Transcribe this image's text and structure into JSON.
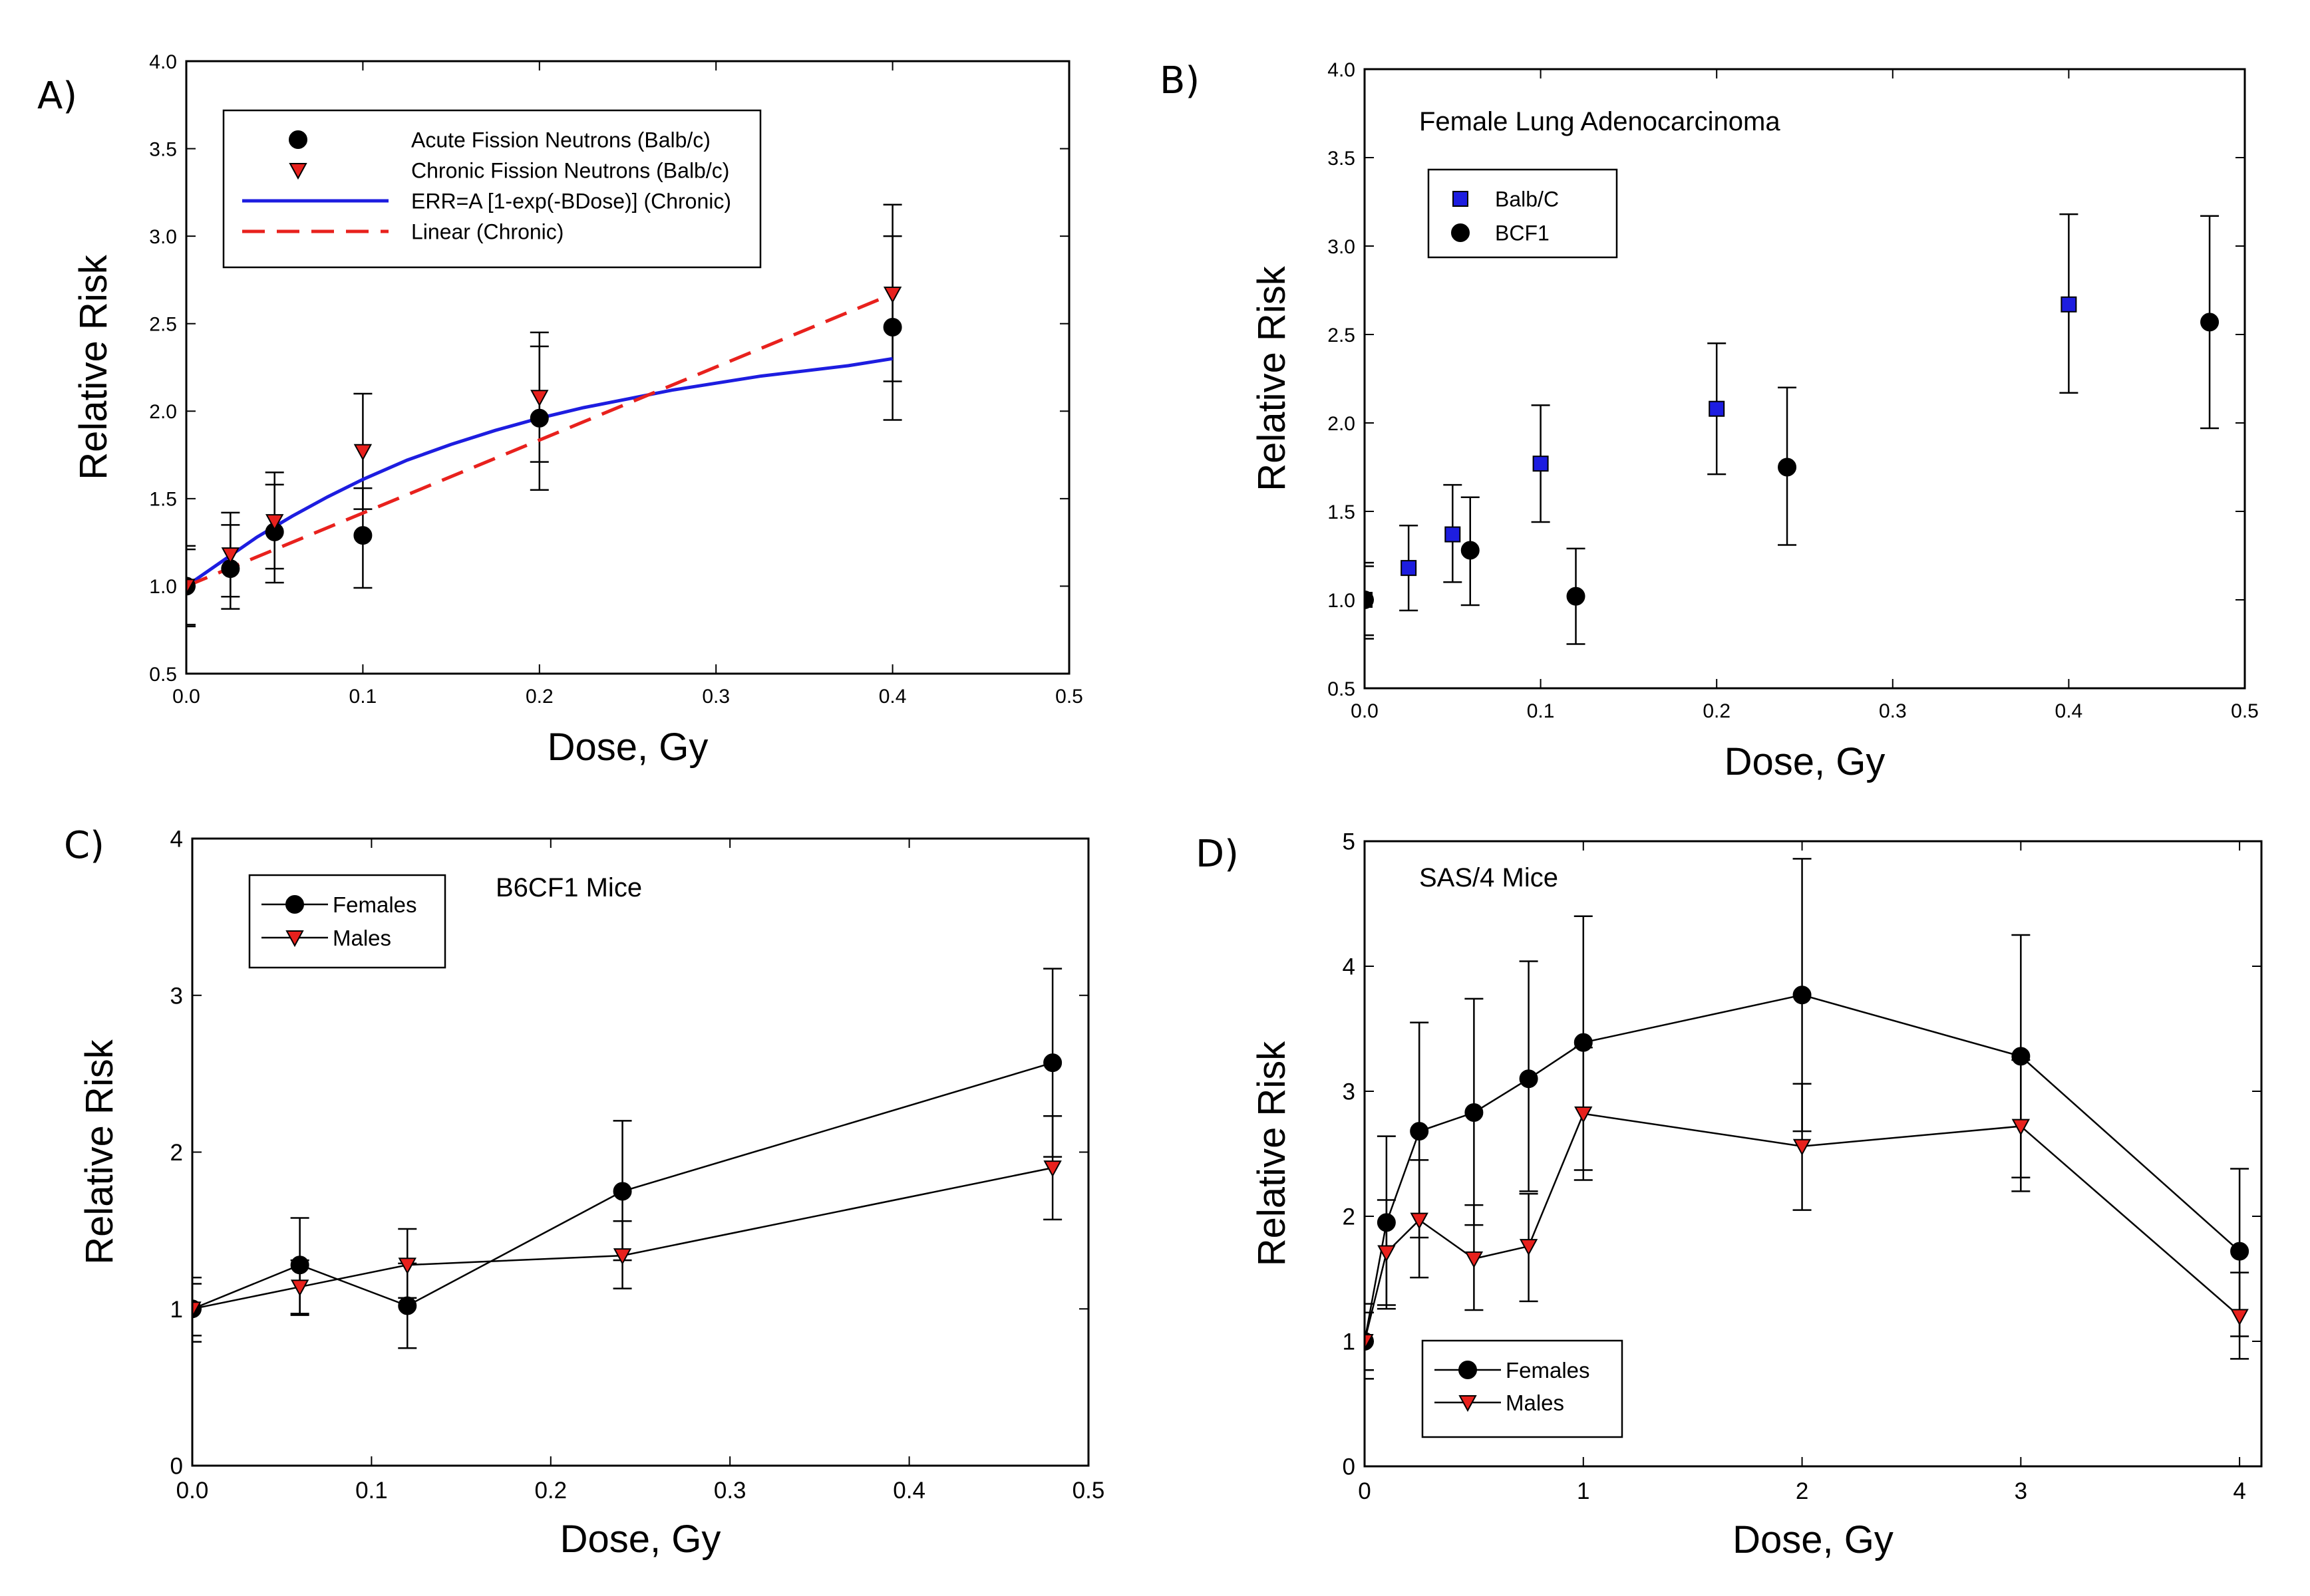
{
  "chart_data": [
    {
      "type": "scatter",
      "panel_label": "A)",
      "xlabel": "Dose, Gy",
      "ylabel": "Relative Risk",
      "xlim": [
        0,
        0.5
      ],
      "ylim": [
        0.5,
        4.0
      ],
      "x_ticks": [
        "0.0",
        "0.1",
        "0.2",
        "0.3",
        "0.4",
        "0.5"
      ],
      "y_ticks": [
        "0.5",
        "1.0",
        "1.5",
        "2.0",
        "2.5",
        "3.0",
        "3.5",
        "4.0"
      ],
      "legend": "top-left",
      "series": [
        {
          "name": "Acute Fission Neutrons (Balb/c)",
          "marker": "circle",
          "color": "#000000",
          "points": [
            {
              "x": 0.0,
              "y": 1.0,
              "lo": 0.77,
              "hi": 1.23
            },
            {
              "x": 0.025,
              "y": 1.1,
              "lo": 0.87,
              "hi": 1.35
            },
            {
              "x": 0.05,
              "y": 1.31,
              "lo": 1.02,
              "hi": 1.58
            },
            {
              "x": 0.1,
              "y": 1.29,
              "lo": 0.99,
              "hi": 1.56
            },
            {
              "x": 0.2,
              "y": 1.96,
              "lo": 1.55,
              "hi": 2.37
            },
            {
              "x": 0.4,
              "y": 2.48,
              "lo": 1.95,
              "hi": 3.0
            }
          ]
        },
        {
          "name": "Chronic Fission Neutrons (Balb/c)",
          "marker": "triangle-down",
          "color": "#e8211d",
          "points": [
            {
              "x": 0.0,
              "y": 1.0,
              "lo": 0.78,
              "hi": 1.21
            },
            {
              "x": 0.025,
              "y": 1.18,
              "lo": 0.94,
              "hi": 1.42
            },
            {
              "x": 0.05,
              "y": 1.37,
              "lo": 1.1,
              "hi": 1.65
            },
            {
              "x": 0.1,
              "y": 1.77,
              "lo": 1.44,
              "hi": 2.1
            },
            {
              "x": 0.2,
              "y": 2.08,
              "lo": 1.71,
              "hi": 2.45
            },
            {
              "x": 0.4,
              "y": 2.67,
              "lo": 2.17,
              "hi": 3.18
            }
          ]
        },
        {
          "name": "ERR=A [1-exp(-BDose)] (Chronic)",
          "style": "solid-line",
          "color": "#1d1de0",
          "x": [
            0.0,
            0.02,
            0.04,
            0.06,
            0.08,
            0.1,
            0.125,
            0.15,
            0.175,
            0.2,
            0.225,
            0.25,
            0.275,
            0.3,
            0.325,
            0.35,
            0.375,
            0.4
          ],
          "y": [
            1.0,
            1.14,
            1.28,
            1.4,
            1.51,
            1.61,
            1.72,
            1.81,
            1.89,
            1.96,
            2.02,
            2.07,
            2.12,
            2.16,
            2.2,
            2.23,
            2.26,
            2.3
          ]
        },
        {
          "name": "Linear (Chronic)",
          "style": "dashed-line",
          "color": "#e8211d",
          "x": [
            0.0,
            0.4
          ],
          "y": [
            1.0,
            2.67
          ]
        }
      ]
    },
    {
      "type": "scatter",
      "panel_label": "B)",
      "title": "Female Lung Adenocarcinoma",
      "xlabel": "Dose, Gy",
      "ylabel": "Relative Risk",
      "xlim": [
        0,
        0.5
      ],
      "ylim": [
        0.5,
        4.0
      ],
      "x_ticks": [
        "0.0",
        "0.1",
        "0.2",
        "0.3",
        "0.4",
        "0.5"
      ],
      "y_ticks": [
        "0.5",
        "1.0",
        "1.5",
        "2.0",
        "2.5",
        "3.0",
        "3.5",
        "4.0"
      ],
      "legend": "upper-left",
      "series": [
        {
          "name": "Balb/C",
          "marker": "square",
          "color": "#1d1de0",
          "points": [
            {
              "x": 0.0,
              "y": 1.0,
              "lo": 0.8,
              "hi": 1.21
            },
            {
              "x": 0.025,
              "y": 1.18,
              "lo": 0.94,
              "hi": 1.42
            },
            {
              "x": 0.05,
              "y": 1.37,
              "lo": 1.1,
              "hi": 1.65
            },
            {
              "x": 0.1,
              "y": 1.77,
              "lo": 1.44,
              "hi": 2.1
            },
            {
              "x": 0.2,
              "y": 2.08,
              "lo": 1.71,
              "hi": 2.45
            },
            {
              "x": 0.4,
              "y": 2.67,
              "lo": 2.17,
              "hi": 3.18
            }
          ]
        },
        {
          "name": "BCF1",
          "marker": "circle",
          "color": "#000000",
          "points": [
            {
              "x": 0.0,
              "y": 1.0,
              "lo": 0.78,
              "hi": 1.19
            },
            {
              "x": 0.06,
              "y": 1.28,
              "lo": 0.97,
              "hi": 1.58
            },
            {
              "x": 0.12,
              "y": 1.02,
              "lo": 0.75,
              "hi": 1.29
            },
            {
              "x": 0.24,
              "y": 1.75,
              "lo": 1.31,
              "hi": 2.2
            },
            {
              "x": 0.48,
              "y": 2.57,
              "lo": 1.97,
              "hi": 3.17
            }
          ]
        }
      ]
    },
    {
      "type": "line",
      "panel_label": "C)",
      "title": "B6CF1 Mice",
      "xlabel": "Dose, Gy",
      "ylabel": "Relative Risk",
      "xlim": [
        0,
        0.5
      ],
      "ylim": [
        0,
        4
      ],
      "x_ticks": [
        "0.0",
        "0.1",
        "0.2",
        "0.3",
        "0.4",
        "0.5"
      ],
      "y_ticks": [
        "0",
        "1",
        "2",
        "3",
        "4"
      ],
      "legend": "top-left",
      "series": [
        {
          "name": "Females",
          "marker": "circle",
          "color": "#000000",
          "points": [
            {
              "x": 0.0,
              "y": 1.0,
              "lo": 0.79,
              "hi": 1.2
            },
            {
              "x": 0.06,
              "y": 1.28,
              "lo": 0.97,
              "hi": 1.58
            },
            {
              "x": 0.12,
              "y": 1.02,
              "lo": 0.75,
              "hi": 1.29
            },
            {
              "x": 0.24,
              "y": 1.75,
              "lo": 1.31,
              "hi": 2.2
            },
            {
              "x": 0.48,
              "y": 2.57,
              "lo": 1.97,
              "hi": 3.17
            }
          ]
        },
        {
          "name": "Males",
          "marker": "triangle-down",
          "color": "#e8211d",
          "points": [
            {
              "x": 0.0,
              "y": 1.0,
              "lo": 0.83,
              "hi": 1.16
            },
            {
              "x": 0.06,
              "y": 1.14,
              "lo": 0.96,
              "hi": 1.31
            },
            {
              "x": 0.12,
              "y": 1.28,
              "lo": 1.07,
              "hi": 1.51
            },
            {
              "x": 0.24,
              "y": 1.34,
              "lo": 1.13,
              "hi": 1.56
            },
            {
              "x": 0.48,
              "y": 1.9,
              "lo": 1.57,
              "hi": 2.23
            }
          ]
        }
      ]
    },
    {
      "type": "line",
      "panel_label": "D)",
      "title": "SAS/4 Mice",
      "xlabel": "Dose, Gy",
      "ylabel": "Relative Risk",
      "xlim": [
        0,
        4.1
      ],
      "ylim": [
        0,
        5
      ],
      "x_ticks": [
        "0",
        "1",
        "2",
        "3",
        "4"
      ],
      "y_ticks": [
        "0",
        "1",
        "2",
        "3",
        "4",
        "5"
      ],
      "legend": "bottom-left",
      "series": [
        {
          "name": "Females",
          "marker": "circle",
          "color": "#000000",
          "points": [
            {
              "x": 0.0,
              "y": 1.0,
              "lo": 0.7,
              "hi": 1.3
            },
            {
              "x": 0.1,
              "y": 1.95,
              "lo": 1.29,
              "hi": 2.64
            },
            {
              "x": 0.25,
              "y": 2.68,
              "lo": 1.83,
              "hi": 3.55
            },
            {
              "x": 0.5,
              "y": 2.83,
              "lo": 1.93,
              "hi": 3.74
            },
            {
              "x": 0.75,
              "y": 3.1,
              "lo": 2.2,
              "hi": 4.04
            },
            {
              "x": 1.0,
              "y": 3.39,
              "lo": 2.37,
              "hi": 4.4
            },
            {
              "x": 2.0,
              "y": 3.77,
              "lo": 2.68,
              "hi": 4.86
            },
            {
              "x": 3.0,
              "y": 3.28,
              "lo": 2.31,
              "hi": 4.25
            },
            {
              "x": 4.0,
              "y": 1.72,
              "lo": 1.04,
              "hi": 2.38
            }
          ]
        },
        {
          "name": "Males",
          "marker": "triangle-down",
          "color": "#e8211d",
          "points": [
            {
              "x": 0.0,
              "y": 1.0,
              "lo": 0.77,
              "hi": 1.23
            },
            {
              "x": 0.1,
              "y": 1.71,
              "lo": 1.26,
              "hi": 2.13
            },
            {
              "x": 0.25,
              "y": 1.97,
              "lo": 1.51,
              "hi": 2.45
            },
            {
              "x": 0.5,
              "y": 1.66,
              "lo": 1.25,
              "hi": 2.09
            },
            {
              "x": 0.75,
              "y": 1.76,
              "lo": 1.32,
              "hi": 2.18
            },
            {
              "x": 1.0,
              "y": 2.82,
              "lo": 2.29,
              "hi": 3.35
            },
            {
              "x": 2.0,
              "y": 2.56,
              "lo": 2.05,
              "hi": 3.06
            },
            {
              "x": 3.0,
              "y": 2.72,
              "lo": 2.2,
              "hi": 3.25
            },
            {
              "x": 4.0,
              "y": 1.2,
              "lo": 0.86,
              "hi": 1.55
            }
          ]
        }
      ]
    }
  ]
}
